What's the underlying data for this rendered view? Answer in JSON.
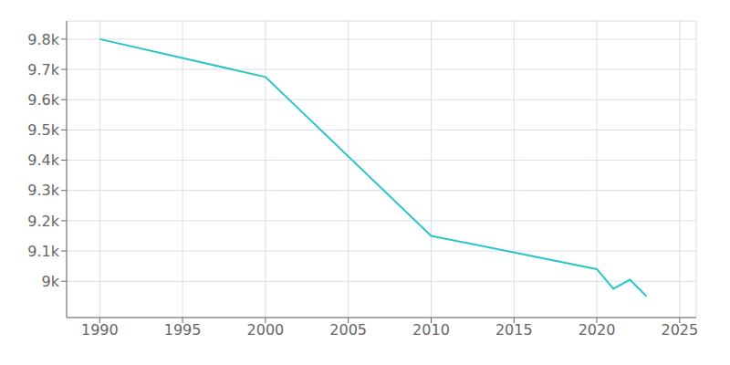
{
  "chart_data": {
    "type": "line",
    "x": [
      1990,
      2000,
      2010,
      2020,
      2021,
      2022,
      2023
    ],
    "values": [
      9800,
      9675,
      9150,
      9040,
      8975,
      9005,
      8950
    ],
    "color": "#29c5c8",
    "xlim": [
      1988,
      2026
    ],
    "ylim": [
      8880,
      9860
    ],
    "xticks": [
      1990,
      1995,
      2000,
      2005,
      2010,
      2015,
      2020,
      2025
    ],
    "yticks": [
      {
        "value": 9000,
        "label": "9k"
      },
      {
        "value": 9100,
        "label": "9.1k"
      },
      {
        "value": 9200,
        "label": "9.2k"
      },
      {
        "value": 9300,
        "label": "9.3k"
      },
      {
        "value": 9400,
        "label": "9.4k"
      },
      {
        "value": 9500,
        "label": "9.5k"
      },
      {
        "value": 9600,
        "label": "9.6k"
      },
      {
        "value": 9700,
        "label": "9.7k"
      },
      {
        "value": 9800,
        "label": "9.8k"
      }
    ],
    "grid": true,
    "marker": "none"
  }
}
